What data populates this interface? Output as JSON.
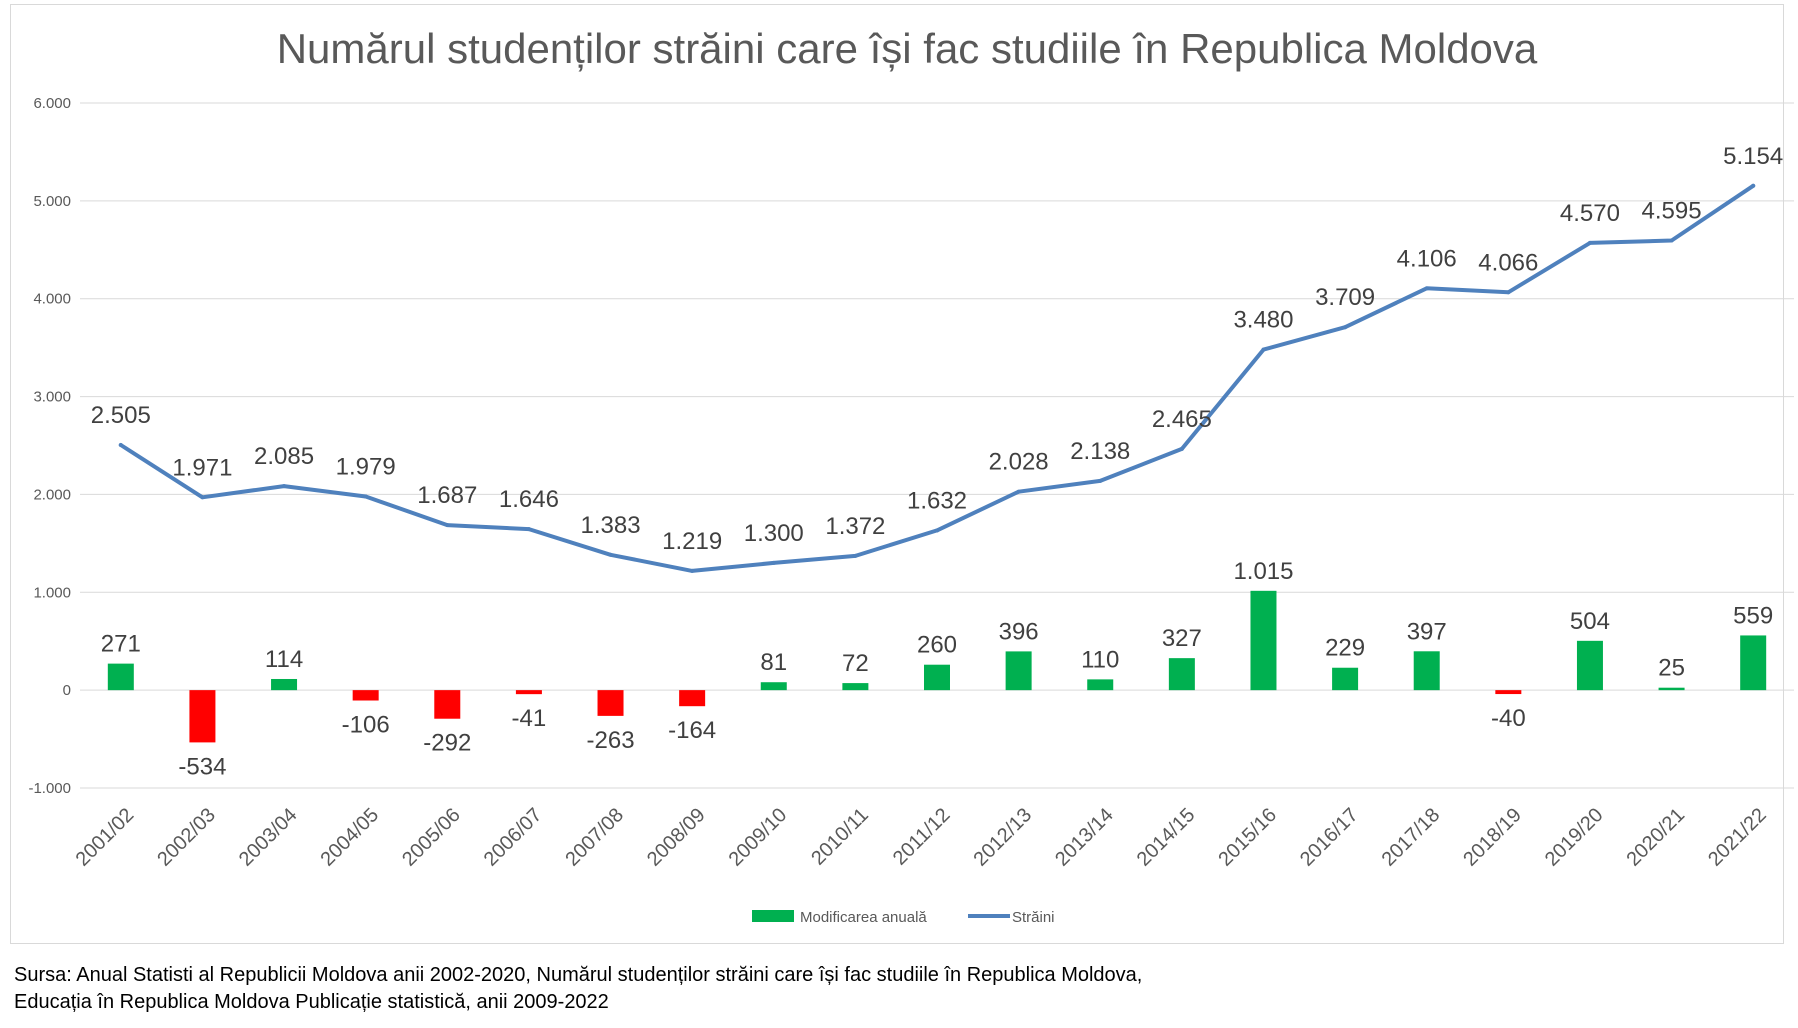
{
  "chart_data": {
    "type": "bar+line",
    "title": "Numărul studenților străini care își fac studiile în Republica Moldova",
    "categories": [
      "2001/02",
      "2002/03",
      "2003/04",
      "2004/05",
      "2005/06",
      "2006/07",
      "2007/08",
      "2008/09",
      "2009/10",
      "2010/11",
      "2011/12",
      "2012/13",
      "2013/14",
      "2014/15",
      "2015/16",
      "2016/17",
      "2017/18",
      "2018/19",
      "2019/20",
      "2020/21",
      "2021/22"
    ],
    "series": [
      {
        "name": "Modificarea anuală",
        "type": "bar",
        "color_positive": "#00b050",
        "color_negative": "#ff0000",
        "values": [
          271,
          -534,
          114,
          -106,
          -292,
          -41,
          -263,
          -164,
          81,
          72,
          260,
          396,
          110,
          327,
          1015,
          229,
          397,
          -40,
          504,
          25,
          559
        ],
        "labels": [
          "271",
          "-534",
          "114",
          "-106",
          "-292",
          "-41",
          "-263",
          "-164",
          "81",
          "72",
          "260",
          "396",
          "110",
          "327",
          "1.015",
          "229",
          "397",
          "-40",
          "504",
          "25",
          "559"
        ]
      },
      {
        "name": "Străini",
        "type": "line",
        "color": "#4f81bd",
        "values": [
          2505,
          1971,
          2085,
          1979,
          1687,
          1646,
          1383,
          1219,
          1300,
          1372,
          1632,
          2028,
          2138,
          2465,
          3480,
          3709,
          4106,
          4066,
          4570,
          4595,
          5154
        ],
        "labels": [
          "2.505",
          "1.971",
          "2.085",
          "1.979",
          "1.687",
          "1.646",
          "1.383",
          "1.219",
          "1.300",
          "1.372",
          "1.632",
          "2.028",
          "2.138",
          "2.465",
          "3.480",
          "3.709",
          "4.106",
          "4.066",
          "4.570",
          "4.595",
          "5.154"
        ]
      }
    ],
    "ylim": [
      -1000,
      6000
    ],
    "yticks": [
      -1000,
      0,
      1000,
      2000,
      3000,
      4000,
      5000,
      6000
    ],
    "ytick_labels": [
      "-1.000",
      "0",
      "1.000",
      "2.000",
      "3.000",
      "4.000",
      "5.000",
      "6.000"
    ],
    "xlabel": "",
    "ylabel": "",
    "grid": true,
    "legend_position": "bottom"
  },
  "source": {
    "line1": "Sursa: Anual Statisti al Republicii Moldova anii 2002-2020, Numărul studenților străini care își fac studiile în Republica Moldova,",
    "line2": "Educația în Republica Moldova Publicație statistică, anii 2009-2022"
  }
}
